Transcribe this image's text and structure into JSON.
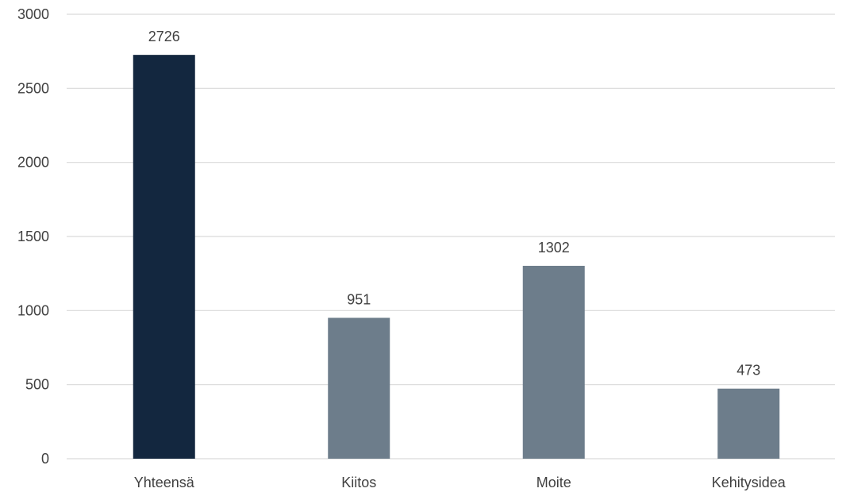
{
  "chart_data": {
    "type": "bar",
    "title": "",
    "xlabel": "",
    "ylabel": "",
    "categories": [
      "Yhteensä",
      "Kiitos",
      "Moite",
      "Kehitysidea"
    ],
    "values": [
      2726,
      951,
      1302,
      473
    ],
    "data_labels": [
      "2726",
      "951",
      "1302",
      "473"
    ],
    "ylim": [
      0,
      3000
    ],
    "yticks": [
      0,
      500,
      1000,
      1500,
      2000,
      2500,
      3000
    ],
    "ytick_labels": [
      "0",
      "500",
      "1000",
      "1500",
      "2000",
      "2500",
      "3000"
    ],
    "grid": true,
    "legend": "none",
    "bar_colors": [
      "#13273f",
      "#6d7d8b",
      "#6d7d8b",
      "#6d7d8b"
    ],
    "gridline_color": "#d9d9d9"
  }
}
